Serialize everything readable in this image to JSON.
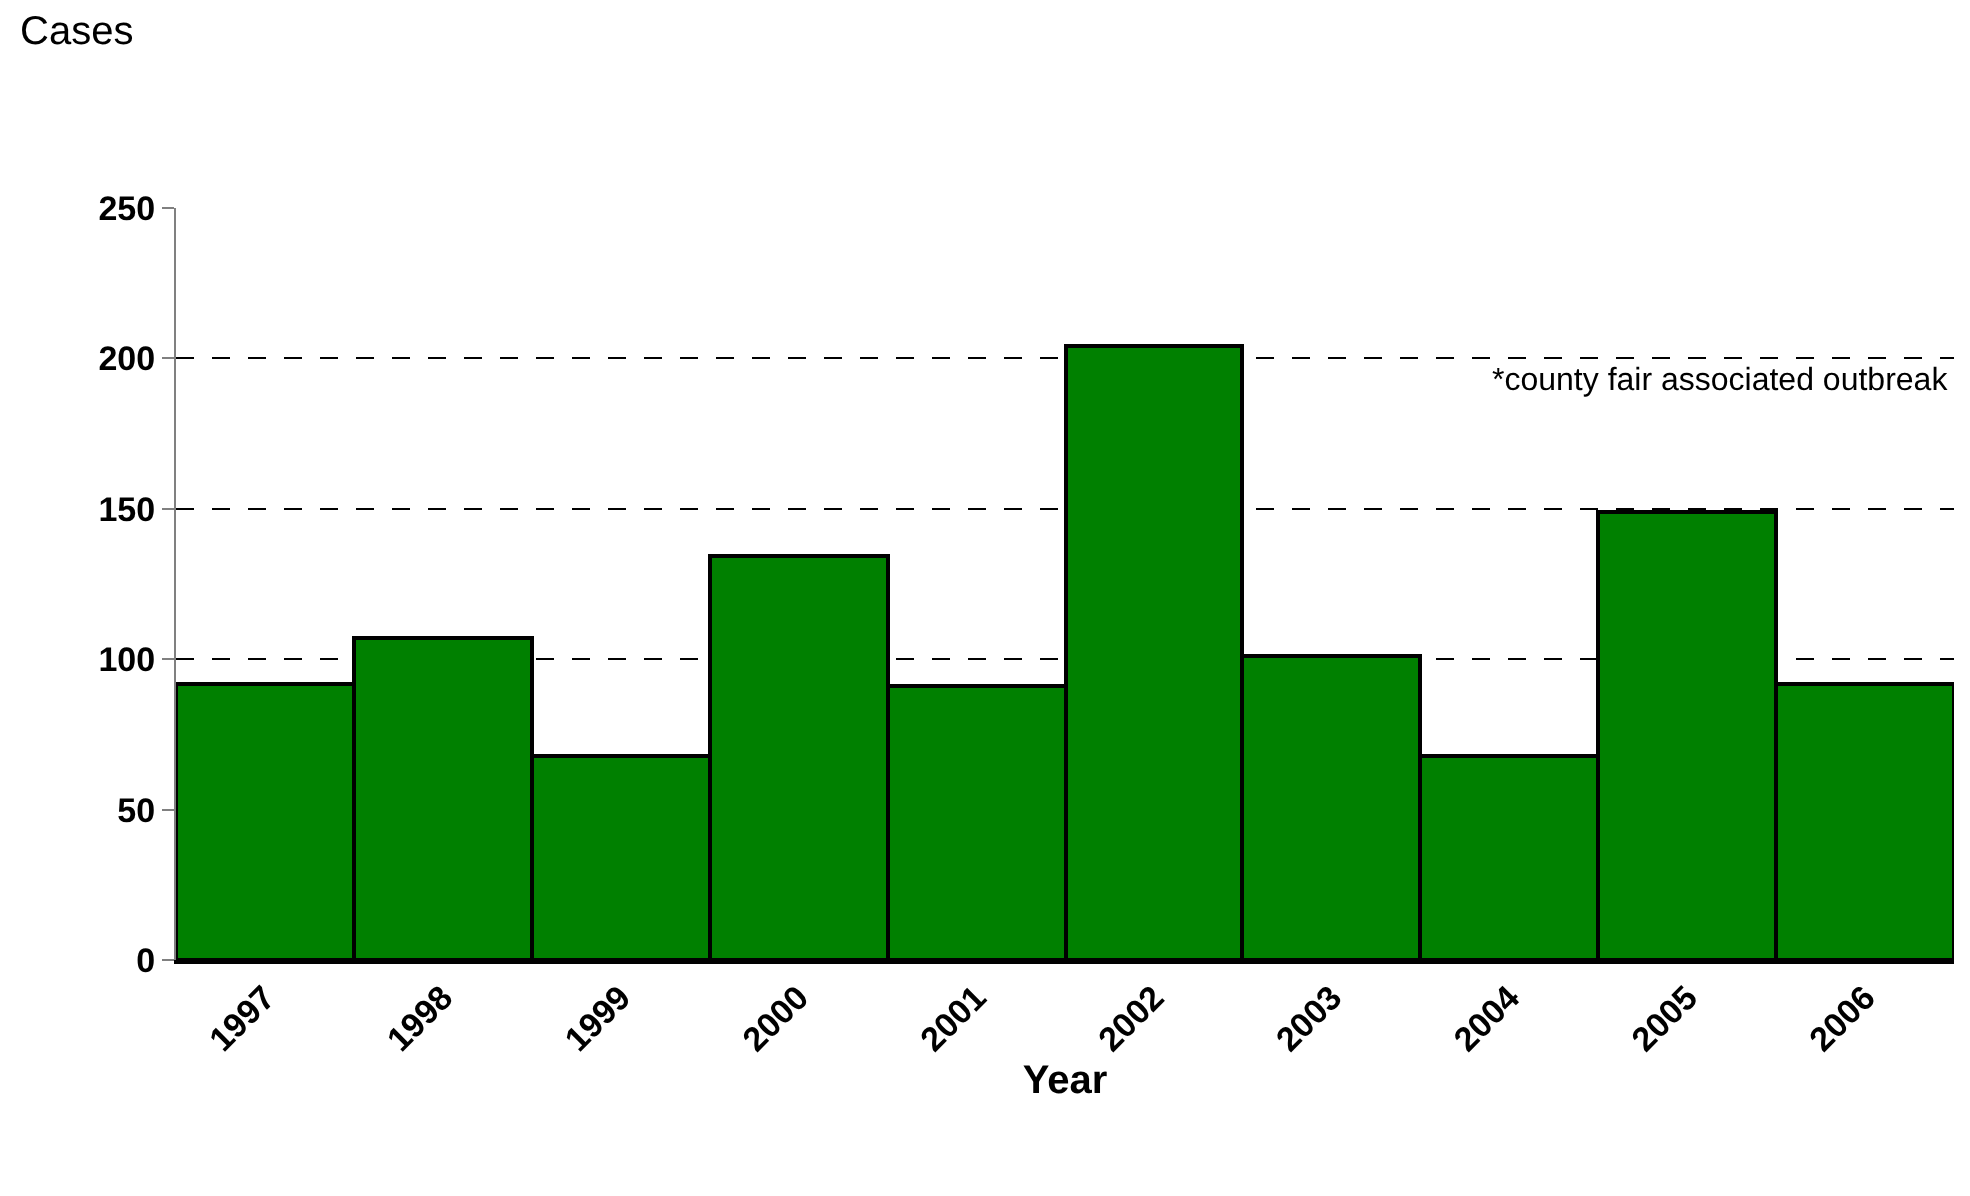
{
  "chart_data": {
    "type": "bar",
    "ylabel": "Cases",
    "xlabel": "Year",
    "categories": [
      "1997",
      "1998",
      "1999",
      "2000",
      "2001",
      "2002",
      "2003",
      "2004",
      "2005",
      "2006"
    ],
    "values": [
      92,
      107,
      68,
      134,
      91,
      204,
      101,
      68,
      149,
      92
    ],
    "color": "#008000",
    "ylim": [
      0,
      250
    ],
    "yticks": [
      0,
      50,
      100,
      150,
      200,
      250
    ],
    "grid": "y",
    "annotations": [
      "*county fair associated outbreak"
    ]
  }
}
